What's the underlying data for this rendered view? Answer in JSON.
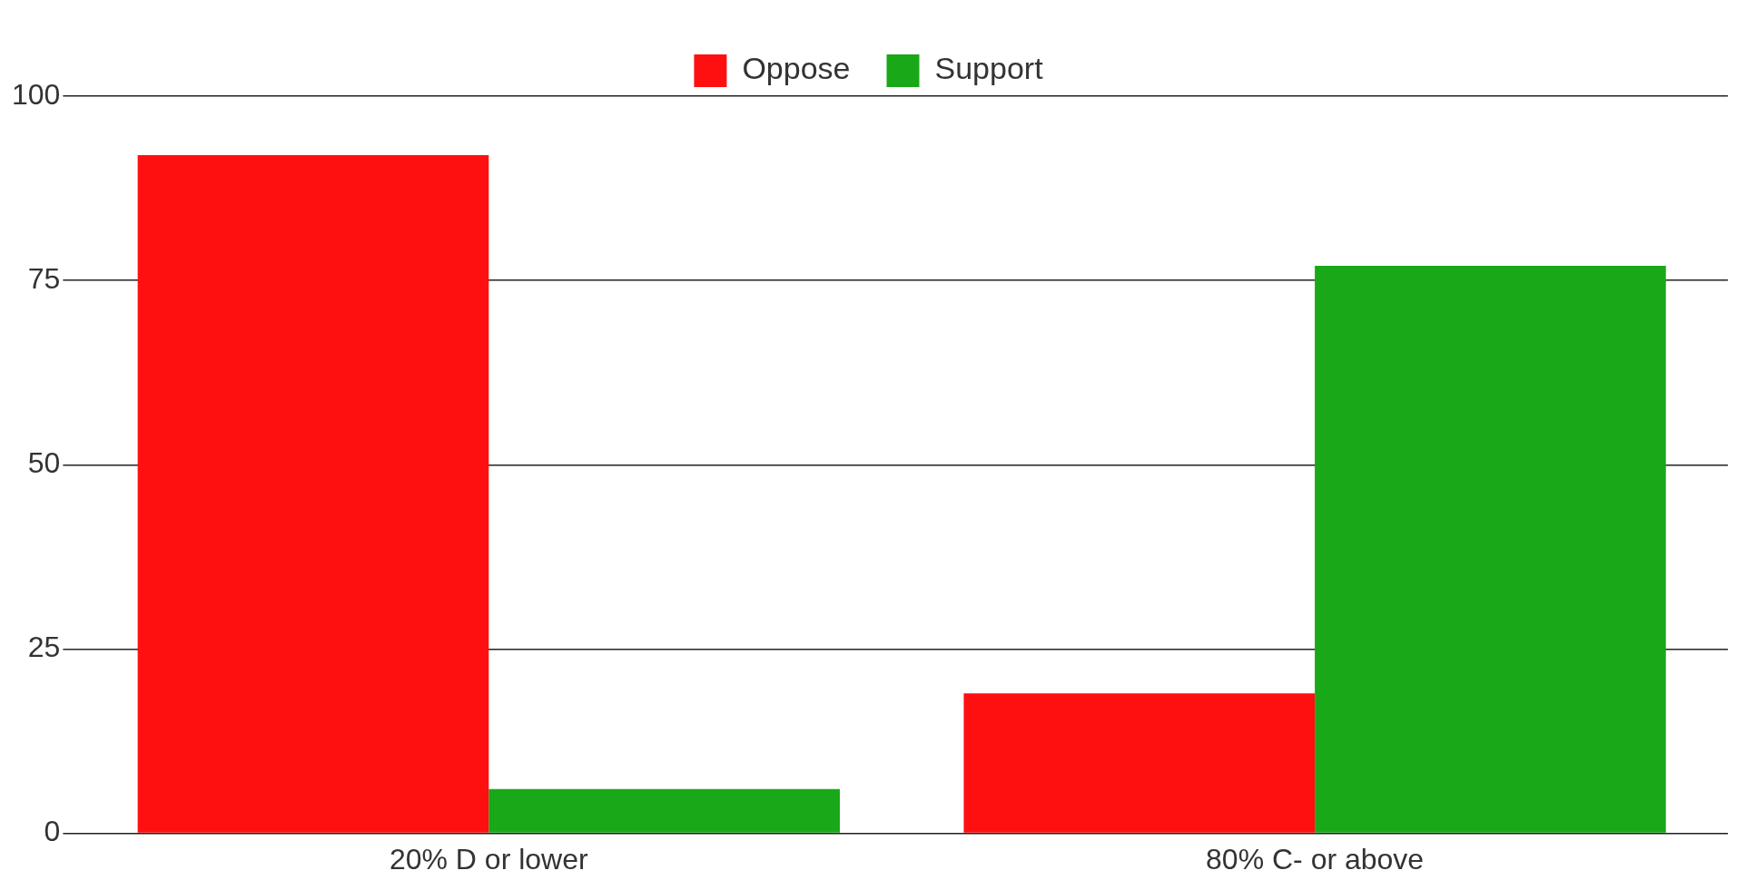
{
  "chart_data": {
    "type": "bar",
    "categories": [
      "20% D or lower",
      "80% C- or above"
    ],
    "series": [
      {
        "name": "Oppose",
        "color": "#ff1010",
        "values": [
          92,
          19
        ]
      },
      {
        "name": "Support",
        "color": "#18a818",
        "values": [
          6,
          77
        ]
      }
    ],
    "ylim": [
      0,
      100
    ],
    "yticks": [
      0,
      25,
      50,
      75,
      100
    ],
    "grid": "y",
    "legend": "top"
  }
}
